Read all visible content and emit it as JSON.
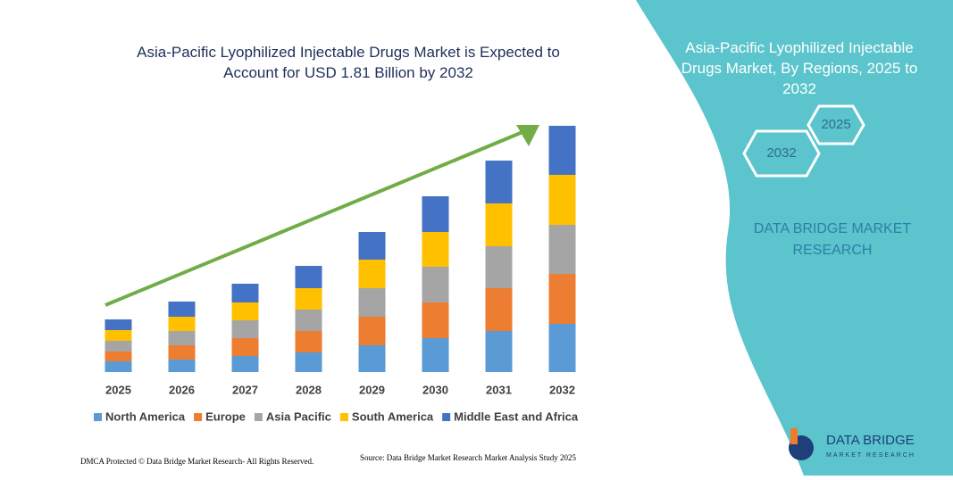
{
  "chart_data": {
    "type": "bar",
    "stacked": true,
    "title": "Asia-Pacific Lyophilized Injectable Drugs Market is Expected to Account for USD 1.81 Billion by 2032",
    "categories": [
      "2025",
      "2026",
      "2027",
      "2028",
      "2029",
      "2030",
      "2031",
      "2032"
    ],
    "series": [
      {
        "name": "North America",
        "color": "#5b9bd5",
        "values": [
          12,
          14,
          18,
          22,
          30,
          38,
          46,
          54
        ]
      },
      {
        "name": "Europe",
        "color": "#ed7d31",
        "values": [
          11,
          16,
          20,
          24,
          32,
          40,
          48,
          56
        ]
      },
      {
        "name": "Asia Pacific",
        "color": "#a5a5a5",
        "values": [
          12,
          16,
          20,
          24,
          32,
          40,
          47,
          55
        ]
      },
      {
        "name": "South America",
        "color": "#ffc000",
        "values": [
          12,
          16,
          20,
          24,
          32,
          39,
          48,
          56
        ]
      },
      {
        "name": "Middle East and Africa",
        "color": "#4472c4",
        "values": [
          12,
          17,
          21,
          25,
          31,
          40,
          48,
          55
        ]
      }
    ],
    "legend": "bottom",
    "grid": false
  },
  "panel": {
    "title": "Asia-Pacific Lyophilized Injectable Drugs Market, By Regions, 2025 to 2032",
    "hex_top": "2025",
    "hex_bottom": "2032",
    "brand": "DATA BRIDGE MARKET RESEARCH",
    "logo_top": "DATA BRIDGE",
    "logo_bottom": "MARKET RESEARCH"
  },
  "footer": {
    "copyright": "DMCA Protected © Data Bridge Market Research-  All Rights Reserved.",
    "source": "Source: Data Bridge Market Research  Market Analysis Study 2025"
  }
}
